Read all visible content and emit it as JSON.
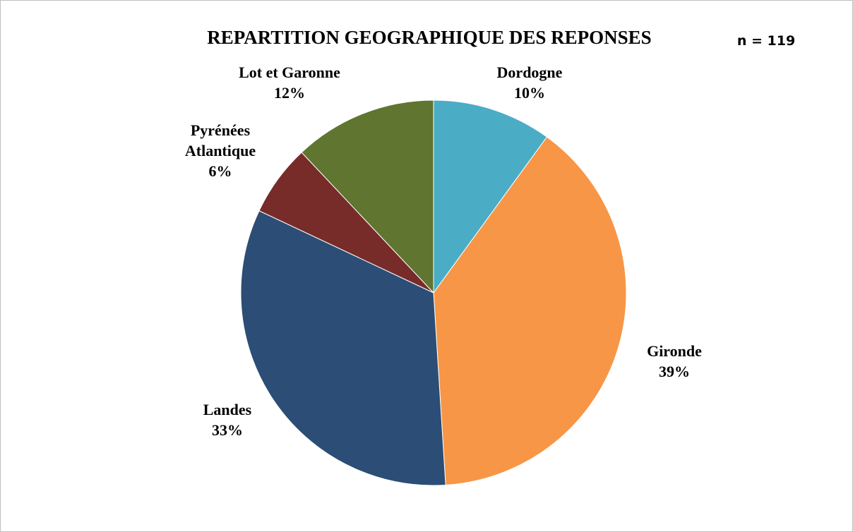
{
  "chart_data": {
    "type": "pie",
    "title": "REPARTITION GEOGRAPHIQUE DES REPONSES",
    "annotation": "n = 119",
    "categories": [
      "Dordogne",
      "Gironde",
      "Landes",
      "Pyrénées Atlantique",
      "Lot et Garonne"
    ],
    "values": [
      10,
      39,
      33,
      6,
      12
    ],
    "value_labels": [
      "10%",
      "39%",
      "33%",
      "6%",
      "12%"
    ],
    "colors": [
      "#4bacc6",
      "#f79646",
      "#2c4d75",
      "#772c2a",
      "#5f7530"
    ]
  }
}
